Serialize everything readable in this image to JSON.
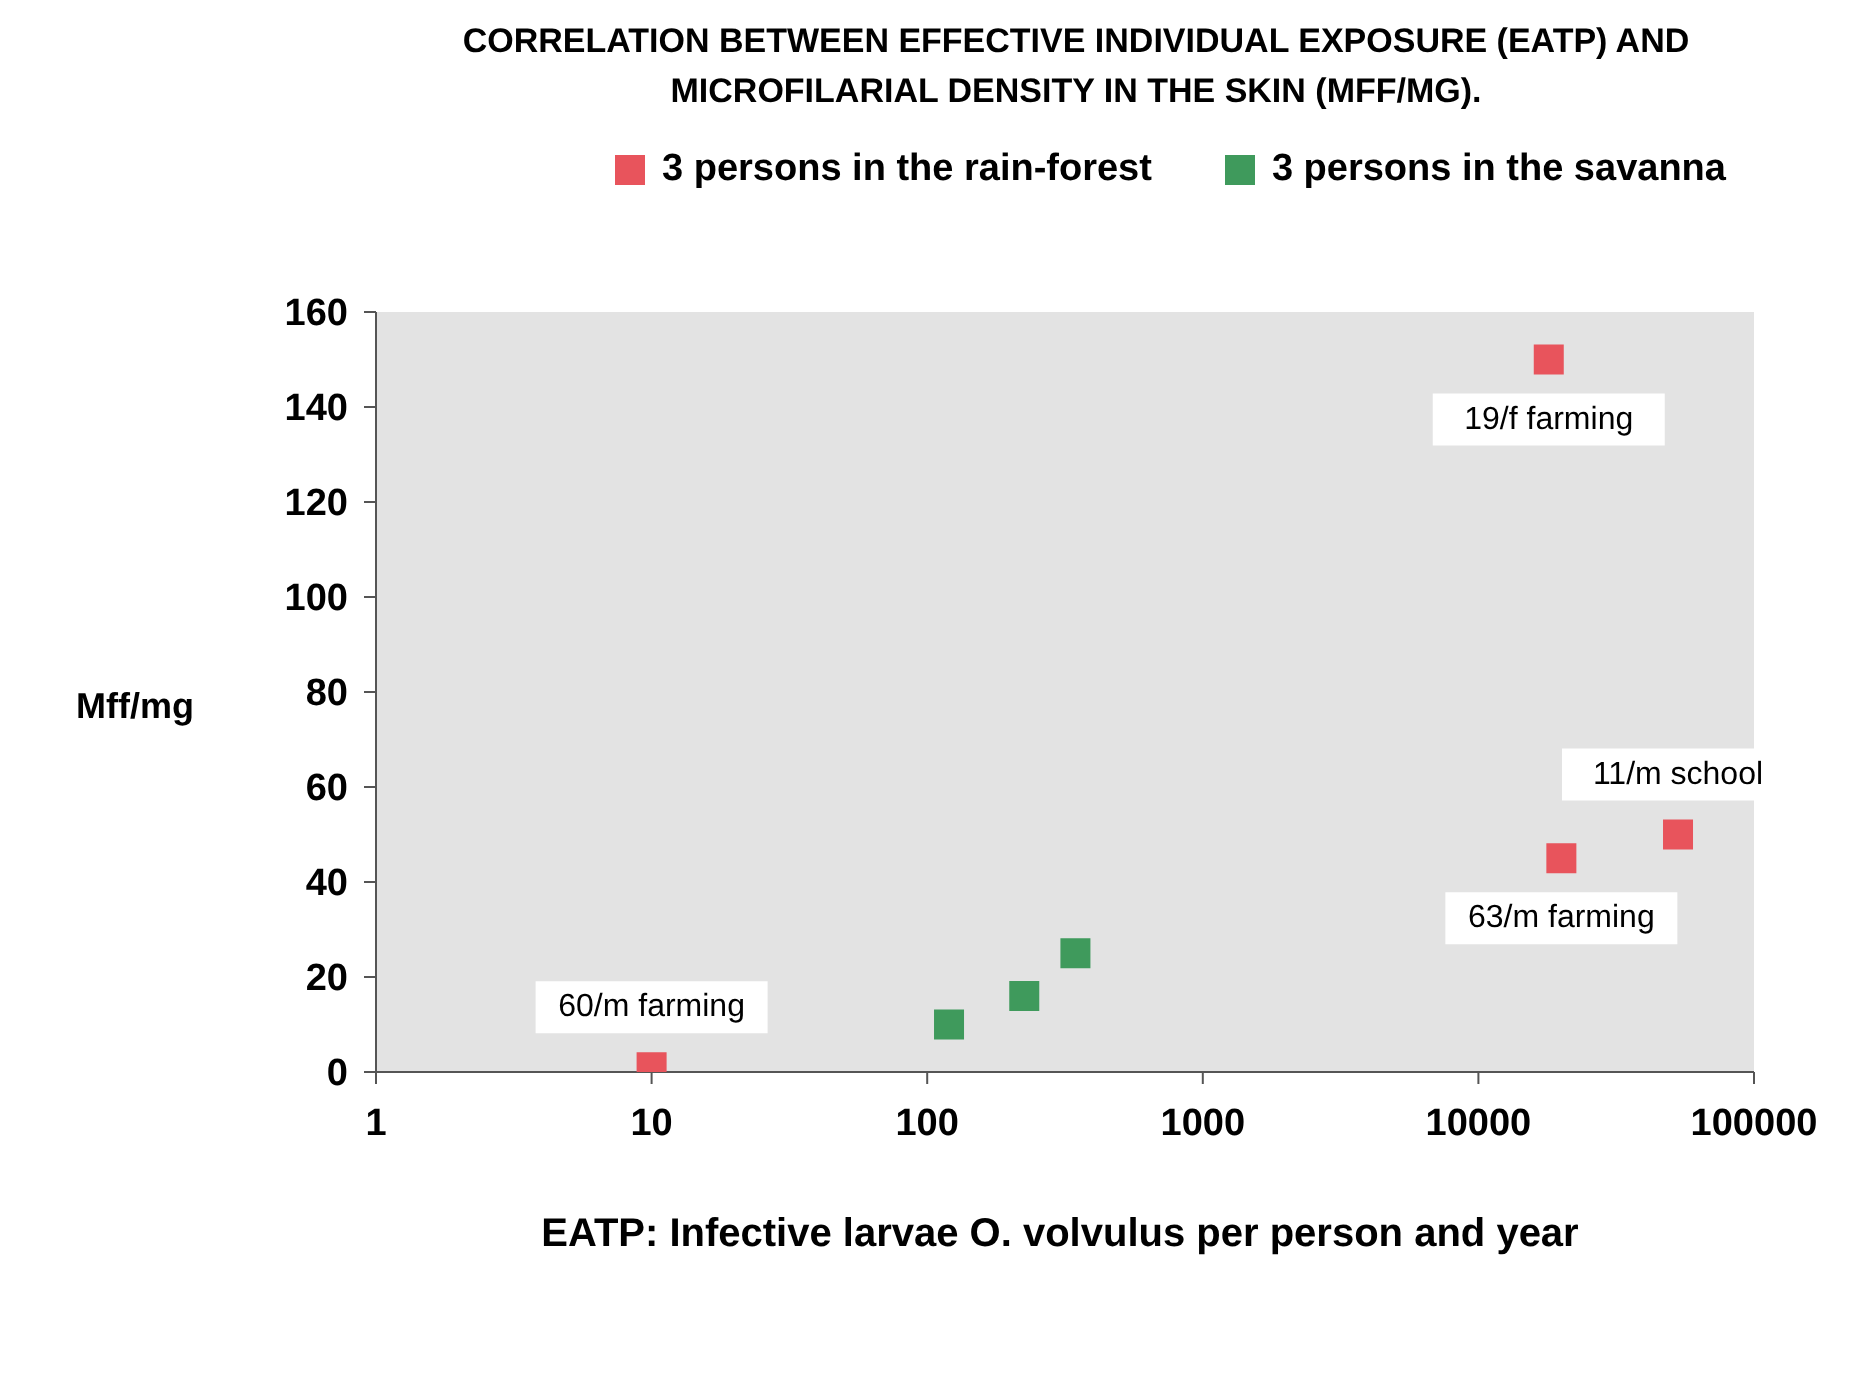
{
  "chart_data": {
    "type": "scatter",
    "title": "CORRELATION BETWEEN EFFECTIVE INDIVIDUAL EXPOSURE (EATP) AND MICROFILARIAL DENSITY IN THE SKIN (MFF/MG).",
    "xlabel": "EATP: Infective larvae O. volvulus per person and year",
    "ylabel": "Mff/mg",
    "series": [
      {
        "name": "3 persons in the rain-forest",
        "color": "#e8545c",
        "x": [
          10,
          18000,
          20000,
          53000
        ],
        "values": [
          1,
          150,
          45,
          50
        ]
      },
      {
        "name": "3 persons in the savanna",
        "color": "#3f9a5c",
        "x": [
          120,
          225,
          345
        ],
        "values": [
          10,
          16,
          25
        ]
      }
    ],
    "annotations": [
      {
        "text": "19/f farming",
        "x": 18000,
        "y": 150
      },
      {
        "text": "11/m school",
        "x": 53000,
        "y": 50
      },
      {
        "text": "63/m farming",
        "x": 20000,
        "y": 45
      },
      {
        "text": "60/m farming",
        "x": 10,
        "y": 1
      }
    ],
    "log": "x",
    "xlim": [
      1,
      100000
    ],
    "xticks": [
      1,
      10,
      100,
      1000,
      10000,
      100000
    ],
    "ylim": [
      0,
      160
    ],
    "yticks": [
      0,
      20,
      40,
      60,
      80,
      100,
      120,
      140,
      160
    ],
    "grid": false,
    "legend": "top",
    "marker": "square"
  }
}
